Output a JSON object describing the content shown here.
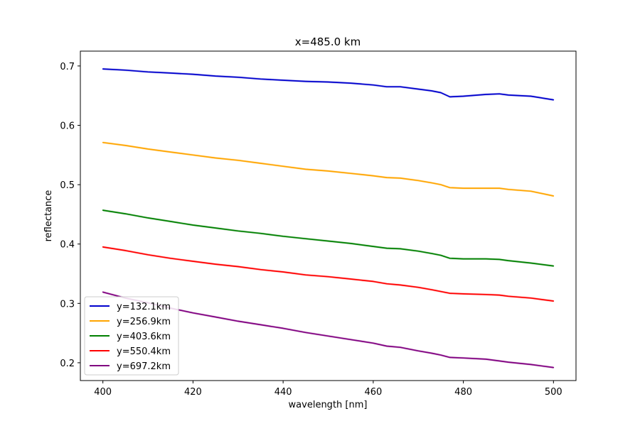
{
  "chart_data": {
    "type": "line",
    "title": "x=485.0 km",
    "xlabel": "wavelength [nm]",
    "ylabel": "reflectance",
    "xlim": [
      395,
      505
    ],
    "ylim": [
      0.17,
      0.725
    ],
    "xticks": [
      400,
      420,
      440,
      460,
      480,
      500
    ],
    "xtick_labels": [
      "400",
      "420",
      "440",
      "460",
      "480",
      "500"
    ],
    "yticks": [
      0.2,
      0.3,
      0.4,
      0.5,
      0.6,
      0.7
    ],
    "ytick_labels": [
      "0.2",
      "0.3",
      "0.4",
      "0.5",
      "0.6",
      "0.7"
    ],
    "grid": false,
    "legend_position": "lower-left",
    "x": [
      400,
      405,
      410,
      415,
      420,
      425,
      430,
      435,
      440,
      445,
      450,
      455,
      460,
      463,
      466,
      470,
      473,
      475,
      477,
      480,
      485,
      488,
      490,
      495,
      500
    ],
    "series": [
      {
        "name": "y=132.1km",
        "color": "#0000cd",
        "values": [
          0.695,
          0.693,
          0.69,
          0.688,
          0.686,
          0.683,
          0.681,
          0.678,
          0.676,
          0.674,
          0.673,
          0.671,
          0.668,
          0.665,
          0.665,
          0.661,
          0.658,
          0.655,
          0.648,
          0.649,
          0.652,
          0.653,
          0.651,
          0.649,
          0.643
        ]
      },
      {
        "name": "y=256.9km",
        "color": "#ffa500",
        "values": [
          0.571,
          0.566,
          0.56,
          0.555,
          0.55,
          0.545,
          0.541,
          0.536,
          0.531,
          0.526,
          0.523,
          0.519,
          0.515,
          0.512,
          0.511,
          0.507,
          0.503,
          0.5,
          0.495,
          0.494,
          0.494,
          0.494,
          0.492,
          0.489,
          0.481
        ]
      },
      {
        "name": "y=403.6km",
        "color": "#008000",
        "values": [
          0.457,
          0.451,
          0.444,
          0.438,
          0.432,
          0.427,
          0.422,
          0.418,
          0.413,
          0.409,
          0.405,
          0.401,
          0.396,
          0.393,
          0.392,
          0.388,
          0.384,
          0.381,
          0.376,
          0.375,
          0.375,
          0.374,
          0.372,
          0.368,
          0.363
        ]
      },
      {
        "name": "y=550.4km",
        "color": "#ff0000",
        "values": [
          0.395,
          0.389,
          0.382,
          0.376,
          0.371,
          0.366,
          0.362,
          0.357,
          0.353,
          0.348,
          0.345,
          0.341,
          0.337,
          0.333,
          0.331,
          0.327,
          0.323,
          0.32,
          0.317,
          0.316,
          0.315,
          0.314,
          0.312,
          0.309,
          0.304
        ]
      },
      {
        "name": "y=697.2km",
        "color": "#800080",
        "values": [
          0.319,
          0.309,
          0.301,
          0.292,
          0.284,
          0.277,
          0.27,
          0.264,
          0.258,
          0.251,
          0.245,
          0.239,
          0.233,
          0.228,
          0.226,
          0.22,
          0.216,
          0.213,
          0.209,
          0.208,
          0.206,
          0.203,
          0.201,
          0.197,
          0.192
        ]
      }
    ]
  }
}
